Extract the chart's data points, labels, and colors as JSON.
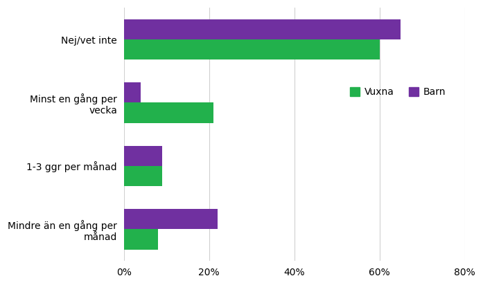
{
  "categories": [
    "Nej/vet inte",
    "Minst en gång per\nvecka",
    "1-3 ggr per månad",
    "Mindre än en gång per\nmånad"
  ],
  "vuxna": [
    60,
    21,
    9,
    8
  ],
  "barn": [
    65,
    4,
    9,
    22
  ],
  "vuxna_color": "#22b14c",
  "barn_color": "#7030a0",
  "xlim": [
    0,
    80
  ],
  "xticks": [
    0,
    20,
    40,
    60,
    80
  ],
  "xticklabels": [
    "0%",
    "20%",
    "40%",
    "60%",
    "80%"
  ],
  "legend_labels": [
    "Vuxna",
    "Barn"
  ],
  "bar_height": 0.32,
  "background_color": "#ffffff",
  "grid_color": "#d0d0d0"
}
